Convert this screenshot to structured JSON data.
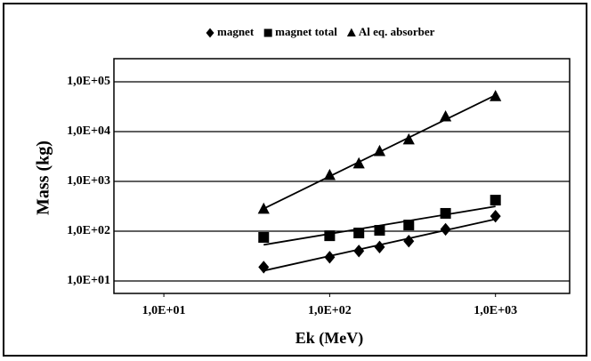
{
  "chart_data": {
    "type": "scatter",
    "x": [
      40,
      100,
      150,
      200,
      300,
      500,
      1000
    ],
    "series": [
      {
        "name": "magnet",
        "marker": "diamond",
        "color": "#000000",
        "values": [
          19,
          30,
          40,
          48,
          63,
          109,
          200
        ]
      },
      {
        "name": "magnet total",
        "marker": "square",
        "color": "#000000",
        "values": [
          75,
          81,
          92,
          104,
          133,
          228,
          420
        ]
      },
      {
        "name": "Al eq. absorber",
        "marker": "triangle",
        "color": "#000000",
        "values": [
          280,
          1330,
          2280,
          4040,
          6900,
          20000,
          51000
        ]
      }
    ],
    "xlabel": "Ek (MeV)",
    "ylabel": "Mass (kg)",
    "xscale": "log",
    "yscale": "log",
    "trendline": true,
    "xlim": [
      5,
      2800
    ],
    "ylim": [
      10,
      100000
    ],
    "xticks": [
      {
        "value": 10,
        "label": "1,0E+01"
      },
      {
        "value": 100,
        "label": "1,0E+02"
      },
      {
        "value": 1000,
        "label": "1,0E+03"
      }
    ],
    "yticks": [
      {
        "value": 10,
        "label": "1,0E+01"
      },
      {
        "value": 100,
        "label": "1,0E+02"
      },
      {
        "value": 1000,
        "label": "1,0E+03"
      },
      {
        "value": 10000,
        "label": "1,0E+04"
      },
      {
        "value": 100000,
        "label": "1,0E+05"
      }
    ],
    "grid": true,
    "legend": "top"
  }
}
